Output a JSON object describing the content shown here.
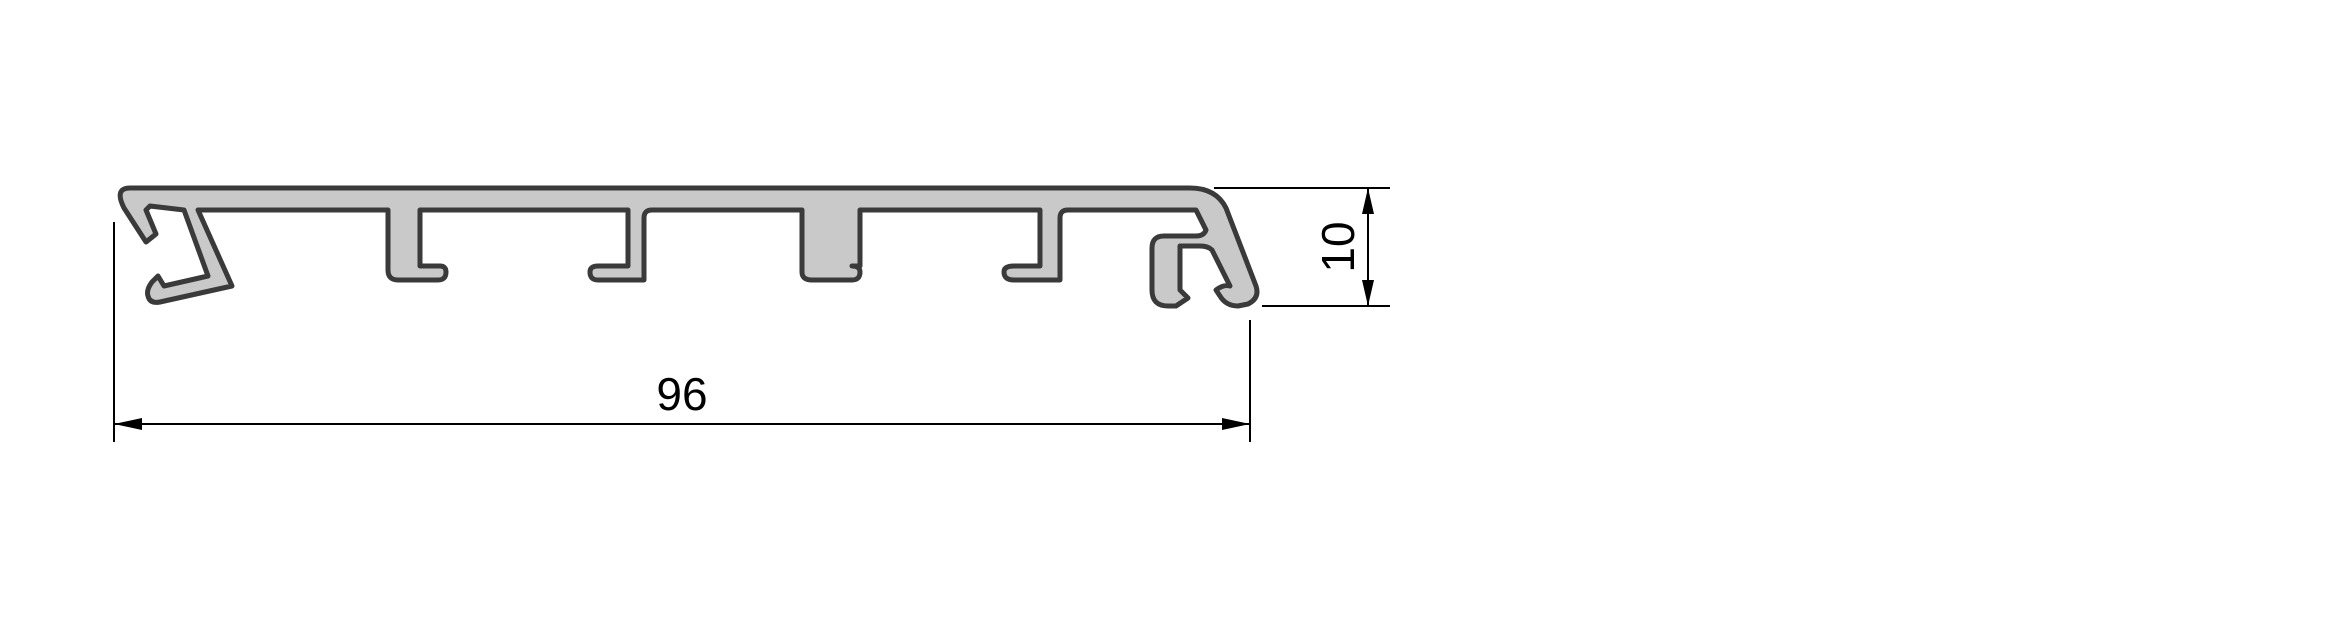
{
  "drawing": {
    "colors": {
      "profile_fill": "#c9c9c9",
      "profile_outline": "#3a3a3a",
      "dimension": "#000000",
      "background": "#ffffff"
    },
    "dimensions": {
      "width_label": "96",
      "height_label": "10"
    }
  }
}
